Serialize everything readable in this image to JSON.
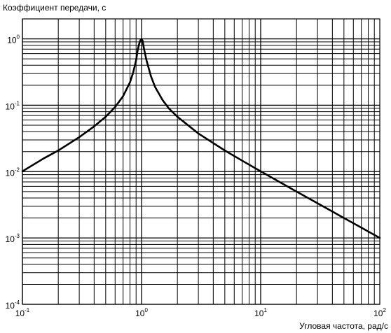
{
  "chart_data": {
    "type": "line",
    "title": "",
    "ylabel": "Коэффициент передачи, с",
    "xlabel": "Угловая частота, рад/с",
    "x_scale": "log",
    "y_scale": "log",
    "xlim": [
      0.1,
      100
    ],
    "ylim": [
      0.0001,
      2
    ],
    "grid": true,
    "legend": "none",
    "x_ticks": [
      {
        "value": 0.1,
        "base": "10",
        "exp": "-1"
      },
      {
        "value": 1,
        "base": "10",
        "exp": "0"
      },
      {
        "value": 10,
        "base": "10",
        "exp": "1"
      },
      {
        "value": 100,
        "base": "10",
        "exp": "2"
      }
    ],
    "y_ticks": [
      {
        "value": 1,
        "base": "10",
        "exp": "0"
      },
      {
        "value": 0.1,
        "base": "10",
        "exp": "-1"
      },
      {
        "value": 0.01,
        "base": "10",
        "exp": "-2"
      },
      {
        "value": 0.001,
        "base": "10",
        "exp": "-3"
      },
      {
        "value": 0.0001,
        "base": "10",
        "exp": "-4"
      }
    ],
    "series": [
      {
        "color": "#000000",
        "x": [
          0.1,
          0.15,
          0.2,
          0.3,
          0.4,
          0.5,
          0.6,
          0.7,
          0.8,
          0.85,
          0.9,
          0.93,
          0.96,
          0.98,
          1.0,
          1.02,
          1.05,
          1.1,
          1.2,
          1.3,
          1.5,
          1.7,
          2,
          3,
          5,
          7,
          10,
          20,
          30,
          50,
          70,
          100
        ],
        "y": [
          0.0101,
          0.0157,
          0.0208,
          0.033,
          0.048,
          0.067,
          0.094,
          0.137,
          0.222,
          0.31,
          0.474,
          0.69,
          0.87,
          0.96,
          1.0,
          0.94,
          0.7,
          0.476,
          0.273,
          0.188,
          0.12,
          0.089,
          0.067,
          0.0375,
          0.0208,
          0.0146,
          0.0101,
          0.005,
          0.00334,
          0.002,
          0.00143,
          0.001
        ]
      }
    ]
  }
}
